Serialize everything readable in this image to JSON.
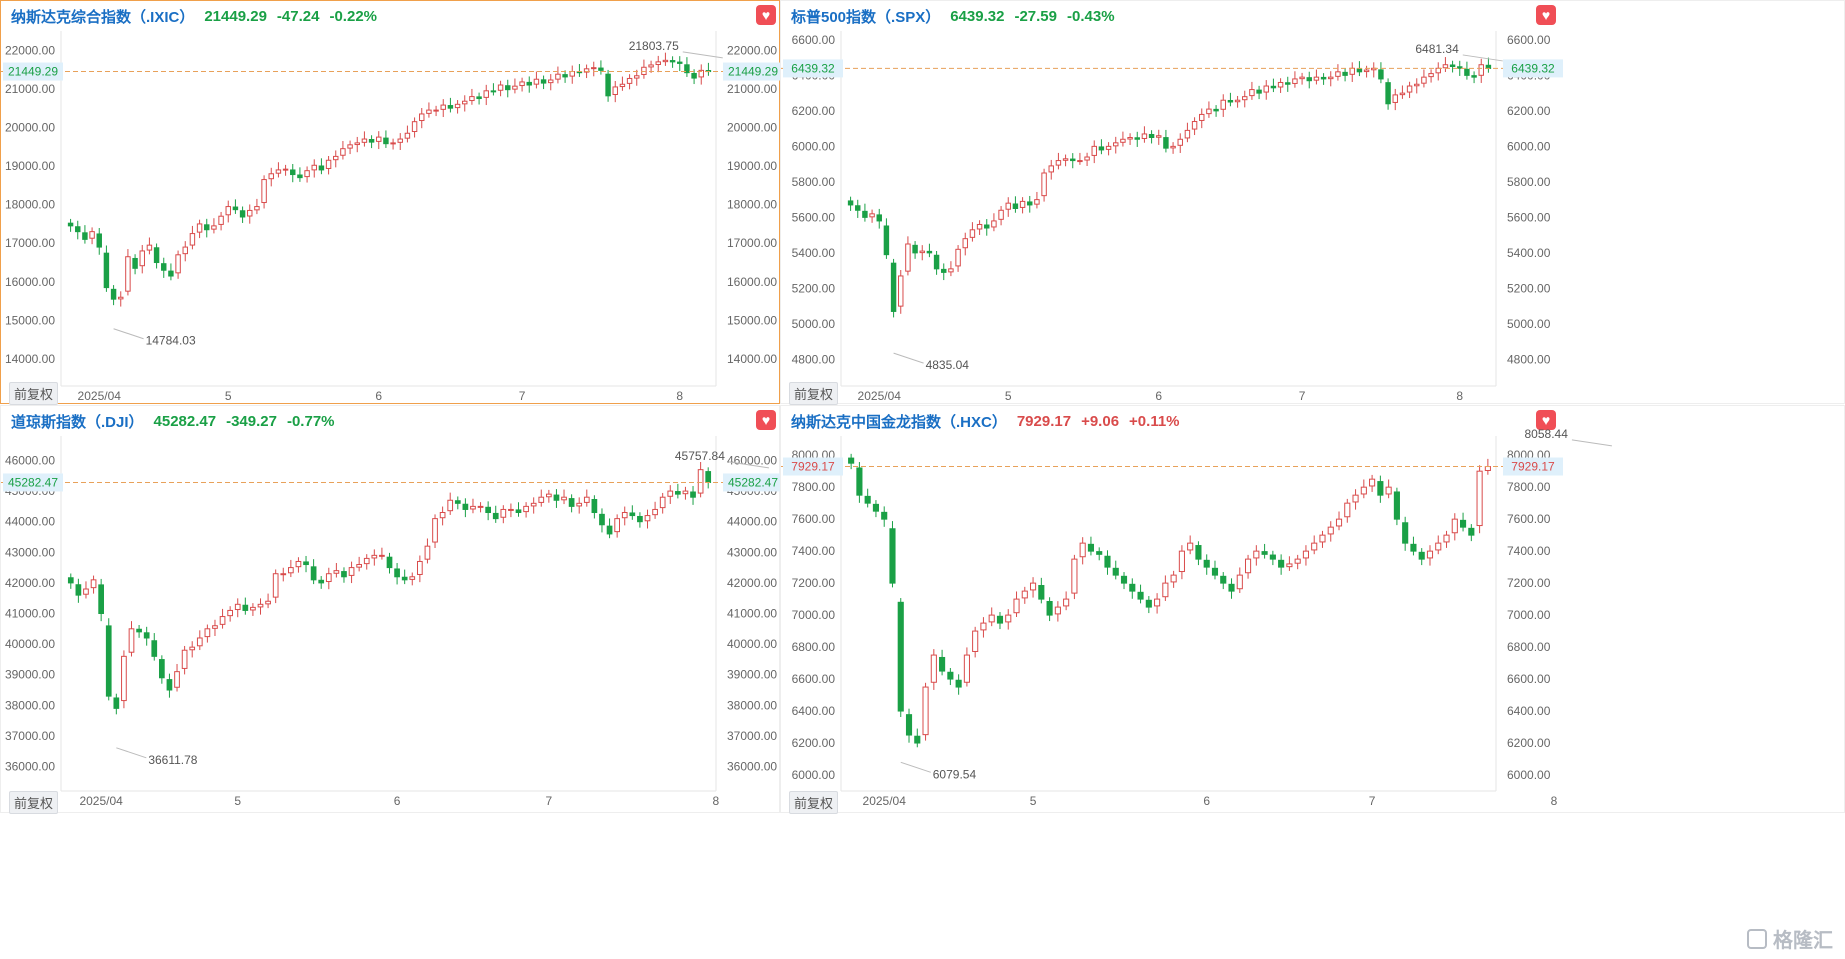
{
  "up_color": "#d94b4b",
  "down_color": "#1aa046",
  "watermark": "格隆汇",
  "chart_data": [
    {
      "type": "candlestick",
      "title": "纳斯达克综合指数（.IXIC）",
      "price": "21449.29",
      "change": "-47.24",
      "pct": "-0.22%",
      "direction": "down",
      "last_value": 21449.29,
      "last_label": "21449.29",
      "ylim": [
        13300,
        22500
      ],
      "yticks": [
        22000,
        21000,
        20000,
        19000,
        18000,
        17000,
        16000,
        15000,
        14000
      ],
      "ytick_labels": [
        "22000.00",
        "21000.00",
        "20000.00",
        "19000.00",
        "18000.00",
        "17000.00",
        "16000.00",
        "15000.00",
        "14000.00"
      ],
      "xticks": [
        {
          "label": "2025/04",
          "i": 4
        },
        {
          "label": "5",
          "i": 22
        },
        {
          "label": "6",
          "i": 43
        },
        {
          "label": "7",
          "i": 63
        },
        {
          "label": "8",
          "i": 85
        }
      ],
      "high_label": "21803.75",
      "high_i": 91,
      "high_val": 21803.75,
      "low_label": "14784.03",
      "low_i": 6,
      "low_val": 14784.03,
      "button": "前复权",
      "active": true,
      "closes": [
        17450,
        17300,
        17100,
        17300,
        16900,
        15850,
        15550,
        15600,
        16650,
        16350,
        16800,
        16950,
        16500,
        16300,
        16150,
        16700,
        16900,
        17250,
        17500,
        17350,
        17450,
        17700,
        17950,
        17870,
        17680,
        17850,
        17950,
        18650,
        18800,
        18900,
        18920,
        18780,
        18700,
        18880,
        19020,
        18900,
        19150,
        19250,
        19450,
        19550,
        19600,
        19700,
        19620,
        19750,
        19580,
        19600,
        19700,
        19850,
        20150,
        20350,
        20450,
        20450,
        20580,
        20500,
        20600,
        20680,
        20800,
        20750,
        20950,
        20940,
        21100,
        20980,
        21070,
        21180,
        21100,
        21250,
        21150,
        21230,
        21380,
        21310,
        21450,
        21420,
        21520,
        21550,
        21480,
        20820,
        21050,
        21120,
        21270,
        21340,
        21560,
        21620,
        21700,
        21740,
        21700,
        21660,
        21420,
        21280,
        21480,
        21449
      ]
    },
    {
      "type": "candlestick",
      "title": "标普500指数（.SPX）",
      "price": "6439.32",
      "change": "-27.59",
      "pct": "-0.43%",
      "direction": "down",
      "last_value": 6439.32,
      "last_label": "6439.32",
      "ylim": [
        4650,
        6650
      ],
      "yticks": [
        6600,
        6400,
        6200,
        6000,
        5800,
        5600,
        5400,
        5200,
        5000,
        4800
      ],
      "ytick_labels": [
        "6600.00",
        "6400.00",
        "6200.00",
        "6000.00",
        "5800.00",
        "5600.00",
        "5400.00",
        "5200.00",
        "5000.00",
        "4800.00"
      ],
      "xticks": [
        {
          "label": "2025/04",
          "i": 4
        },
        {
          "label": "5",
          "i": 22
        },
        {
          "label": "6",
          "i": 43
        },
        {
          "label": "7",
          "i": 63
        },
        {
          "label": "8",
          "i": 85
        }
      ],
      "high_label": "6481.34",
      "high_i": 91,
      "high_val": 6481.34,
      "low_label": "4835.04",
      "low_i": 6,
      "low_val": 4835.04,
      "button": "前复权",
      "active": false,
      "closes": [
        5670,
        5640,
        5600,
        5620,
        5580,
        5390,
        5070,
        5270,
        5450,
        5400,
        5410,
        5400,
        5310,
        5290,
        5310,
        5420,
        5480,
        5530,
        5560,
        5540,
        5580,
        5640,
        5680,
        5650,
        5690,
        5670,
        5700,
        5850,
        5890,
        5920,
        5930,
        5920,
        5920,
        5940,
        6000,
        5980,
        6000,
        6020,
        6040,
        6050,
        6040,
        6070,
        6050,
        6060,
        5990,
        6000,
        6040,
        6090,
        6140,
        6180,
        6210,
        6200,
        6260,
        6250,
        6260,
        6280,
        6320,
        6300,
        6340,
        6330,
        6360,
        6350,
        6380,
        6390,
        6370,
        6390,
        6380,
        6390,
        6420,
        6400,
        6440,
        6420,
        6430,
        6440,
        6380,
        6240,
        6290,
        6300,
        6340,
        6350,
        6390,
        6410,
        6440,
        6460,
        6450,
        6440,
        6400,
        6390,
        6460,
        6439
      ]
    },
    {
      "type": "candlestick",
      "title": "道琼斯指数（.DJI）",
      "price": "45282.47",
      "change": "-349.27",
      "pct": "-0.77%",
      "direction": "down",
      "last_value": 45282.47,
      "last_label": "45282.47",
      "ylim": [
        35200,
        46800
      ],
      "yticks": [
        46000,
        45000,
        44000,
        43000,
        42000,
        41000,
        40000,
        39000,
        38000,
        37000,
        36000
      ],
      "ytick_labels": [
        "46000.00",
        "45000.00",
        "44000.00",
        "43000.00",
        "42000.00",
        "41000.00",
        "40000.00",
        "39000.00",
        "38000.00",
        "37000.00",
        "36000.00"
      ],
      "xticks": [
        {
          "label": "2025/04",
          "i": 4
        },
        {
          "label": "5",
          "i": 22
        },
        {
          "label": "6",
          "i": 43
        },
        {
          "label": "7",
          "i": 63
        },
        {
          "label": "8",
          "i": 85
        }
      ],
      "high_label": "45757.84",
      "high_i": 92,
      "high_val": 45757.84,
      "low_label": "36611.78",
      "low_i": 6,
      "low_val": 36611.78,
      "button": "前复权",
      "active": false,
      "closes": [
        42000,
        41600,
        41800,
        42100,
        41000,
        38300,
        37900,
        39600,
        40500,
        40400,
        40200,
        39600,
        38900,
        38500,
        39100,
        39800,
        39900,
        40200,
        40500,
        40600,
        40900,
        41100,
        41300,
        41100,
        41200,
        41300,
        41400,
        42300,
        42300,
        42500,
        42700,
        42600,
        42100,
        42000,
        42300,
        42400,
        42200,
        42500,
        42600,
        42800,
        42900,
        42900,
        42500,
        42200,
        42100,
        42200,
        42700,
        43200,
        44100,
        44300,
        44700,
        44600,
        44400,
        44500,
        44500,
        44300,
        44100,
        44400,
        44400,
        44300,
        44500,
        44600,
        44800,
        44900,
        44700,
        44800,
        44500,
        44600,
        44800,
        44300,
        43900,
        43600,
        44100,
        44300,
        44200,
        44000,
        44200,
        44400,
        44800,
        45000,
        44900,
        45000,
        44800,
        45700,
        45282
      ]
    },
    {
      "type": "candlestick",
      "title": "纳斯达克中国金龙指数（.HXC）",
      "price": "7929.17",
      "change": "+9.06",
      "pct": "+0.11%",
      "direction": "up",
      "last_value": 7929.17,
      "last_label": "7929.17",
      "ylim": [
        5900,
        8120
      ],
      "yticks": [
        8000,
        7800,
        7600,
        7400,
        7200,
        7000,
        6800,
        6600,
        6400,
        6200,
        6000
      ],
      "ytick_labels": [
        "8000.00",
        "7800.00",
        "7600.00",
        "7400.00",
        "7200.00",
        "7000.00",
        "6800.00",
        "6600.00",
        "6400.00",
        "6200.00",
        "6000.00"
      ],
      "xticks": [
        {
          "label": "2025/04",
          "i": 4
        },
        {
          "label": "5",
          "i": 22
        },
        {
          "label": "6",
          "i": 43
        },
        {
          "label": "7",
          "i": 63
        },
        {
          "label": "8",
          "i": 85
        }
      ],
      "high_label": "8058.44",
      "high_i": 92,
      "high_val": 8058.44,
      "low_label": "6079.54",
      "low_i": 6,
      "low_val": 6079.54,
      "button": "前复权",
      "active": false,
      "closes": [
        7950,
        7750,
        7700,
        7650,
        7600,
        7200,
        6400,
        6250,
        6200,
        6550,
        6750,
        6650,
        6600,
        6550,
        6750,
        6900,
        6950,
        7000,
        6950,
        7000,
        7100,
        7150,
        7200,
        7100,
        7000,
        7050,
        7100,
        7350,
        7450,
        7400,
        7380,
        7300,
        7250,
        7200,
        7150,
        7100,
        7050,
        7100,
        7200,
        7250,
        7400,
        7450,
        7350,
        7300,
        7250,
        7200,
        7150,
        7250,
        7350,
        7400,
        7380,
        7350,
        7300,
        7320,
        7350,
        7400,
        7450,
        7500,
        7550,
        7600,
        7700,
        7750,
        7800,
        7850,
        7750,
        7800,
        7600,
        7450,
        7400,
        7350,
        7400,
        7450,
        7500,
        7600,
        7550,
        7500,
        7900,
        7929
      ]
    }
  ]
}
